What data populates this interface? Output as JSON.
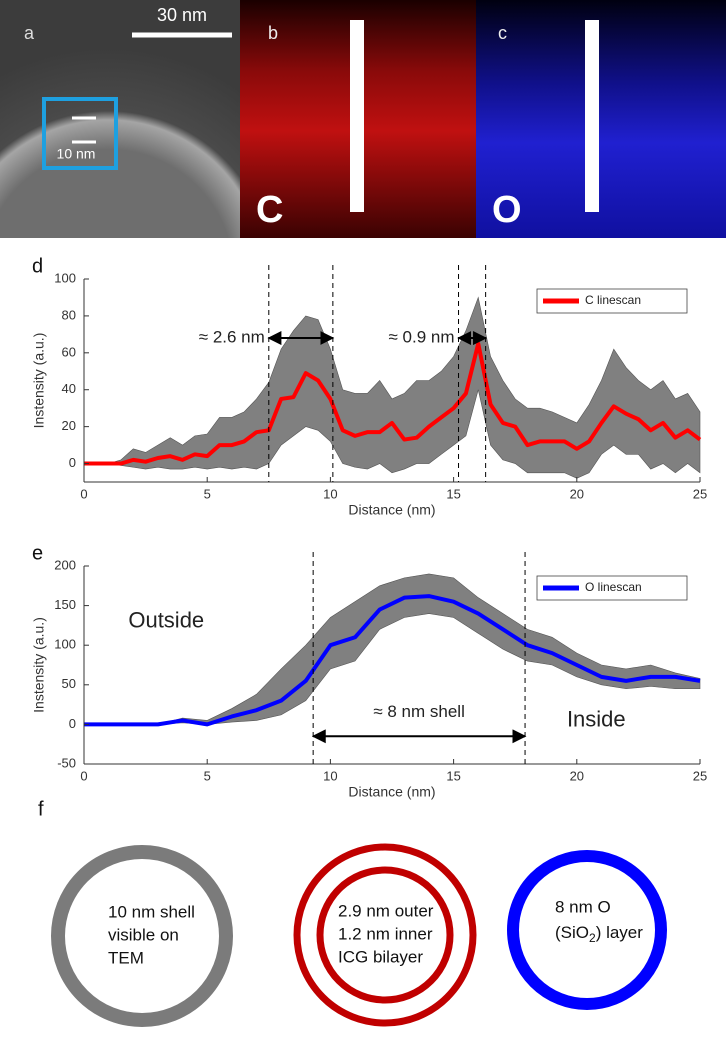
{
  "panels": [
    {
      "letter": "a",
      "scale_bar": "30 nm",
      "inset_bar": "10 nm"
    },
    {
      "letter": "b",
      "element": "C"
    },
    {
      "letter": "c",
      "element": "O"
    }
  ],
  "chart_data": [
    {
      "type": "line",
      "label": "d",
      "xlabel": "Distance (nm)",
      "ylabel": "Instensity (a.u.)",
      "xlim": [
        0,
        25
      ],
      "xticks": [
        0,
        5,
        10,
        15,
        20,
        25
      ],
      "ylim": [
        -10,
        100
      ],
      "yticks": [
        0,
        20,
        40,
        60,
        80,
        100
      ],
      "legend": "upper right",
      "x": [
        0,
        0.5,
        1,
        1.5,
        2,
        2.5,
        3,
        3.5,
        4,
        4.5,
        5,
        5.5,
        6,
        6.5,
        7,
        7.5,
        8,
        8.5,
        9,
        9.5,
        10,
        10.5,
        11,
        11.5,
        12,
        12.5,
        13,
        13.5,
        14,
        14.5,
        15,
        15.5,
        16,
        16.5,
        17,
        17.5,
        18,
        18.5,
        19,
        19.5,
        20,
        20.5,
        21,
        21.5,
        22,
        22.5,
        23,
        23.5,
        24,
        24.5,
        25
      ],
      "series": [
        {
          "name": "C linescan",
          "color": "#ff0000",
          "band_color": "#808080",
          "values": [
            0,
            0,
            0,
            0,
            2,
            1,
            3,
            4,
            2,
            5,
            4,
            10,
            10,
            12,
            17,
            18,
            35,
            36,
            49,
            45,
            35,
            18,
            15,
            17,
            17,
            22,
            13,
            14,
            20,
            25,
            30,
            38,
            65,
            32,
            22,
            20,
            10,
            12,
            12,
            12,
            8,
            12,
            22,
            31,
            27,
            24,
            18,
            22,
            14,
            18,
            13
          ],
          "upper": [
            0,
            0,
            0,
            2,
            8,
            6,
            10,
            14,
            10,
            15,
            16,
            25,
            25,
            28,
            35,
            44,
            62,
            72,
            80,
            78,
            62,
            40,
            38,
            38,
            45,
            35,
            38,
            45,
            45,
            50,
            58,
            72,
            90,
            58,
            45,
            35,
            30,
            30,
            28,
            25,
            22,
            32,
            45,
            62,
            52,
            45,
            40,
            45,
            35,
            38,
            28
          ],
          "lower": [
            0,
            0,
            0,
            -1,
            -2,
            -3,
            -2,
            -3,
            -3,
            -2,
            -3,
            -2,
            -3,
            -2,
            -3,
            0,
            10,
            15,
            20,
            18,
            12,
            0,
            -2,
            -3,
            0,
            -5,
            -3,
            0,
            0,
            5,
            10,
            15,
            40,
            10,
            2,
            0,
            -5,
            -5,
            -5,
            -5,
            -8,
            -5,
            5,
            10,
            5,
            5,
            -3,
            0,
            -5,
            0,
            -5
          ]
        }
      ],
      "vlines": [
        7.5,
        10.1,
        15.2,
        16.3
      ],
      "arrows": [
        {
          "text": "≈ 2.6 nm",
          "from": 7.5,
          "to": 10.1,
          "y": 68,
          "label": "left"
        },
        {
          "text": "≈ 0.9 nm",
          "from": 15.2,
          "to": 16.3,
          "y": 68,
          "label": "left"
        }
      ],
      "notes": []
    },
    {
      "type": "line",
      "label": "e",
      "xlabel": "Distance (nm)",
      "ylabel": "Instensity (a.u.)",
      "xlim": [
        0,
        25
      ],
      "xticks": [
        0,
        5,
        10,
        15,
        20,
        25
      ],
      "ylim": [
        -50,
        200
      ],
      "yticks": [
        -50,
        0,
        50,
        100,
        150,
        200
      ],
      "legend": "upper right",
      "x": [
        0,
        1,
        2,
        3,
        4,
        5,
        6,
        7,
        8,
        9,
        10,
        11,
        12,
        13,
        14,
        15,
        16,
        17,
        18,
        19,
        20,
        21,
        22,
        23,
        24,
        25
      ],
      "series": [
        {
          "name": "O linescan",
          "color": "#0000ff",
          "band_color": "#808080",
          "values": [
            0,
            0,
            0,
            0,
            5,
            0,
            10,
            18,
            30,
            55,
            100,
            110,
            145,
            160,
            162,
            155,
            140,
            120,
            100,
            90,
            75,
            60,
            55,
            60,
            60,
            55
          ],
          "upper": [
            0,
            0,
            0,
            0,
            8,
            5,
            20,
            38,
            70,
            100,
            135,
            155,
            175,
            185,
            190,
            185,
            160,
            140,
            120,
            110,
            90,
            75,
            70,
            75,
            65,
            58
          ],
          "lower": [
            0,
            0,
            0,
            0,
            2,
            0,
            3,
            5,
            12,
            30,
            70,
            80,
            120,
            135,
            140,
            135,
            115,
            95,
            80,
            75,
            60,
            50,
            45,
            48,
            45,
            45
          ]
        }
      ],
      "vlines": [
        9.3,
        17.9
      ],
      "arrows": [
        {
          "text": "≈ 8 nm shell",
          "from": 9.3,
          "to": 17.9,
          "y": -15,
          "label": "above"
        }
      ],
      "notes": [
        {
          "text": "Outside",
          "x": 1.8,
          "y": 130
        },
        {
          "text": "Inside",
          "x": 19.6,
          "y": 5
        }
      ]
    }
  ],
  "diagram": {
    "label": "f",
    "rings": [
      {
        "lines": [
          "10 nm shell",
          "visible on",
          "TEM"
        ]
      },
      {
        "lines": [
          "2.9 nm outer",
          "1.2 nm inner",
          "ICG bilayer"
        ]
      },
      {
        "lines": [
          "8 nm O",
          "(SiO",
          "2",
          ") layer"
        ]
      }
    ]
  }
}
